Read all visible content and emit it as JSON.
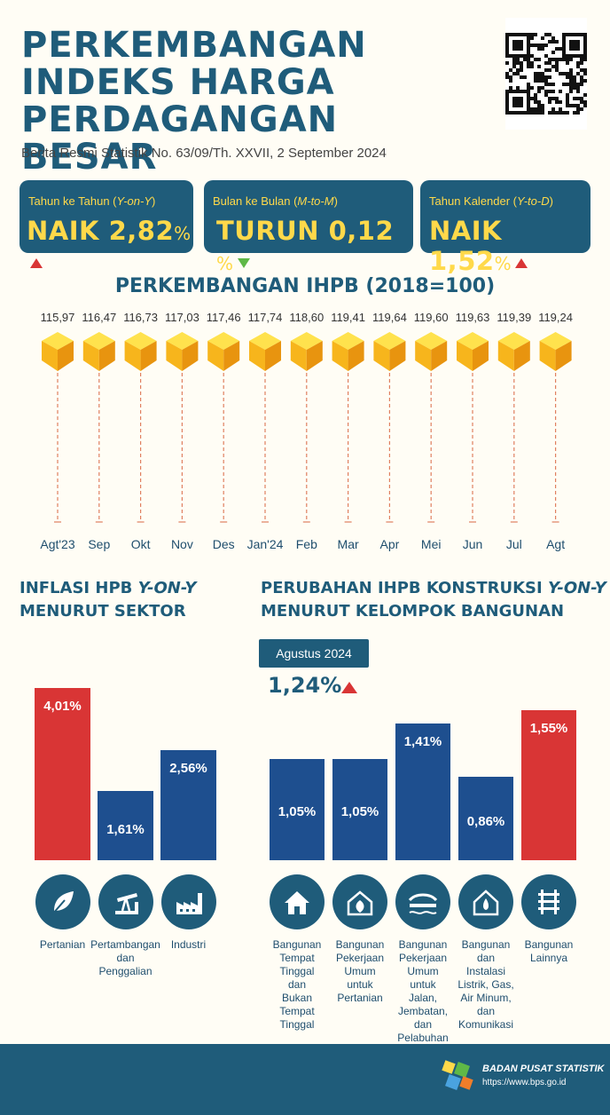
{
  "header": {
    "title_lines": [
      "PERKEMBANGAN",
      "INDEKS HARGA",
      "PERDAGANGAN BESAR"
    ],
    "subtitle": "Berita Resmi Statistik No. 63/09/Th. XXVII, 2 September 2024"
  },
  "cards": [
    {
      "label_main": "Tahun ke Tahun (",
      "label_italic": "Y-on-Y",
      "label_end": ")",
      "value": "NAIK 2,82",
      "unit": "%",
      "direction": "up"
    },
    {
      "label_main": "Bulan ke Bulan  (",
      "label_italic": "M-to-M",
      "label_end": ")",
      "value": "TURUN 0,12",
      "unit": " %",
      "direction": "down"
    },
    {
      "label_main": "Tahun Kalender (",
      "label_italic": "Y-to-D",
      "label_end": ")",
      "value": "NAIK 1,52",
      "unit": "%",
      "direction": "up"
    }
  ],
  "ihpb_title": "PERKEMBANGAN IHPB (2018=100)",
  "sector_title": {
    "line1_main": "INFLASI HPB ",
    "line1_italic": "Y-ON-Y",
    "line2": "MENURUT SEKTOR"
  },
  "construction_title": {
    "line1_main": "PERUBAHAN IHPB KONSTRUKSI ",
    "line1_italic": "Y-ON-Y",
    "line2": "MENURUT KELOMPOK BANGUNAN"
  },
  "construction_badge": {
    "label": "Agustus 2024",
    "value": "1,24%"
  },
  "footer": {
    "org": "BADAN PUSAT STATISTIK",
    "url": "https://www.bps.go.id"
  },
  "colors": {
    "primary": "#1f5c7a",
    "accent": "#ffd94a",
    "red": "#d93535",
    "blue": "#1e4f8f",
    "green": "#5fb847"
  },
  "chart_data": [
    {
      "type": "line",
      "title": "PERKEMBANGAN IHPB (2018=100)",
      "categories": [
        "Agt'23",
        "Sep",
        "Okt",
        "Nov",
        "Des",
        "Jan'24",
        "Feb",
        "Mar",
        "Apr",
        "Mei",
        "Jun",
        "Jul",
        "Agt"
      ],
      "values": [
        115.97,
        116.47,
        116.73,
        117.03,
        117.46,
        117.74,
        118.6,
        119.41,
        119.64,
        119.6,
        119.63,
        119.39,
        119.24
      ],
      "value_labels": [
        "115,97",
        "116,47",
        "116,73",
        "117,03",
        "117,46",
        "117,74",
        "118,60",
        "119,41",
        "119,64",
        "119,60",
        "119,63",
        "119,39",
        "119,24"
      ]
    },
    {
      "type": "bar",
      "title": "INFLASI HPB Y-ON-Y MENURUT SEKTOR",
      "categories": [
        "Pertanian",
        "Pertambangan dan Penggalian",
        "Industri"
      ],
      "category_lines": [
        [
          "Pertanian"
        ],
        [
          "Pertambangan",
          "dan",
          "Penggalian"
        ],
        [
          "Industri"
        ]
      ],
      "values": [
        4.01,
        1.61,
        2.56
      ],
      "value_labels": [
        "4,01%",
        "1,61%",
        "2,56%"
      ],
      "bar_colors": [
        "#d93535",
        "#1e4f8f",
        "#1e4f8f"
      ],
      "icons": [
        "leaf-icon",
        "oil-pump-icon",
        "factory-icon"
      ]
    },
    {
      "type": "bar",
      "title": "PERUBAHAN IHPB KONSTRUKSI Y-ON-Y MENURUT KELOMPOK BANGUNAN",
      "categories": [
        "Bangunan Tempat Tinggal dan Bukan Tempat Tinggal",
        "Bangunan Pekerjaan Umum untuk Pertanian",
        "Bangunan Pekerjaan Umum untuk Jalan, Jembatan, dan Pelabuhan",
        "Bangunan dan Instalasi Listrik, Gas, Air Minum, dan Komunikasi",
        "Bangunan Lainnya"
      ],
      "category_lines": [
        [
          "Bangunan",
          "Tempat",
          "Tinggal",
          "dan",
          "Bukan",
          "Tempat",
          "Tinggal"
        ],
        [
          "Bangunan",
          "Pekerjaan",
          "Umum",
          "untuk",
          "Pertanian"
        ],
        [
          "Bangunan",
          "Pekerjaan",
          "Umum",
          "untuk",
          "Jalan,",
          "Jembatan,",
          "dan",
          "Pelabuhan"
        ],
        [
          "Bangunan",
          "dan",
          "Instalasi",
          "Listrik, Gas,",
          "Air Minum,",
          "dan",
          "Komunikasi"
        ],
        [
          "Bangunan",
          "Lainnya"
        ]
      ],
      "values": [
        1.05,
        1.05,
        1.41,
        0.86,
        1.55
      ],
      "value_labels": [
        "1,05%",
        "1,05%",
        "1,41%",
        "0,86%",
        "1,55%"
      ],
      "bar_colors": [
        "#1e4f8f",
        "#1e4f8f",
        "#1e4f8f",
        "#1e4f8f",
        "#d93535"
      ],
      "icons": [
        "house-icon",
        "greenhouse-icon",
        "bridge-icon",
        "utility-icon",
        "railway-icon"
      ]
    }
  ]
}
